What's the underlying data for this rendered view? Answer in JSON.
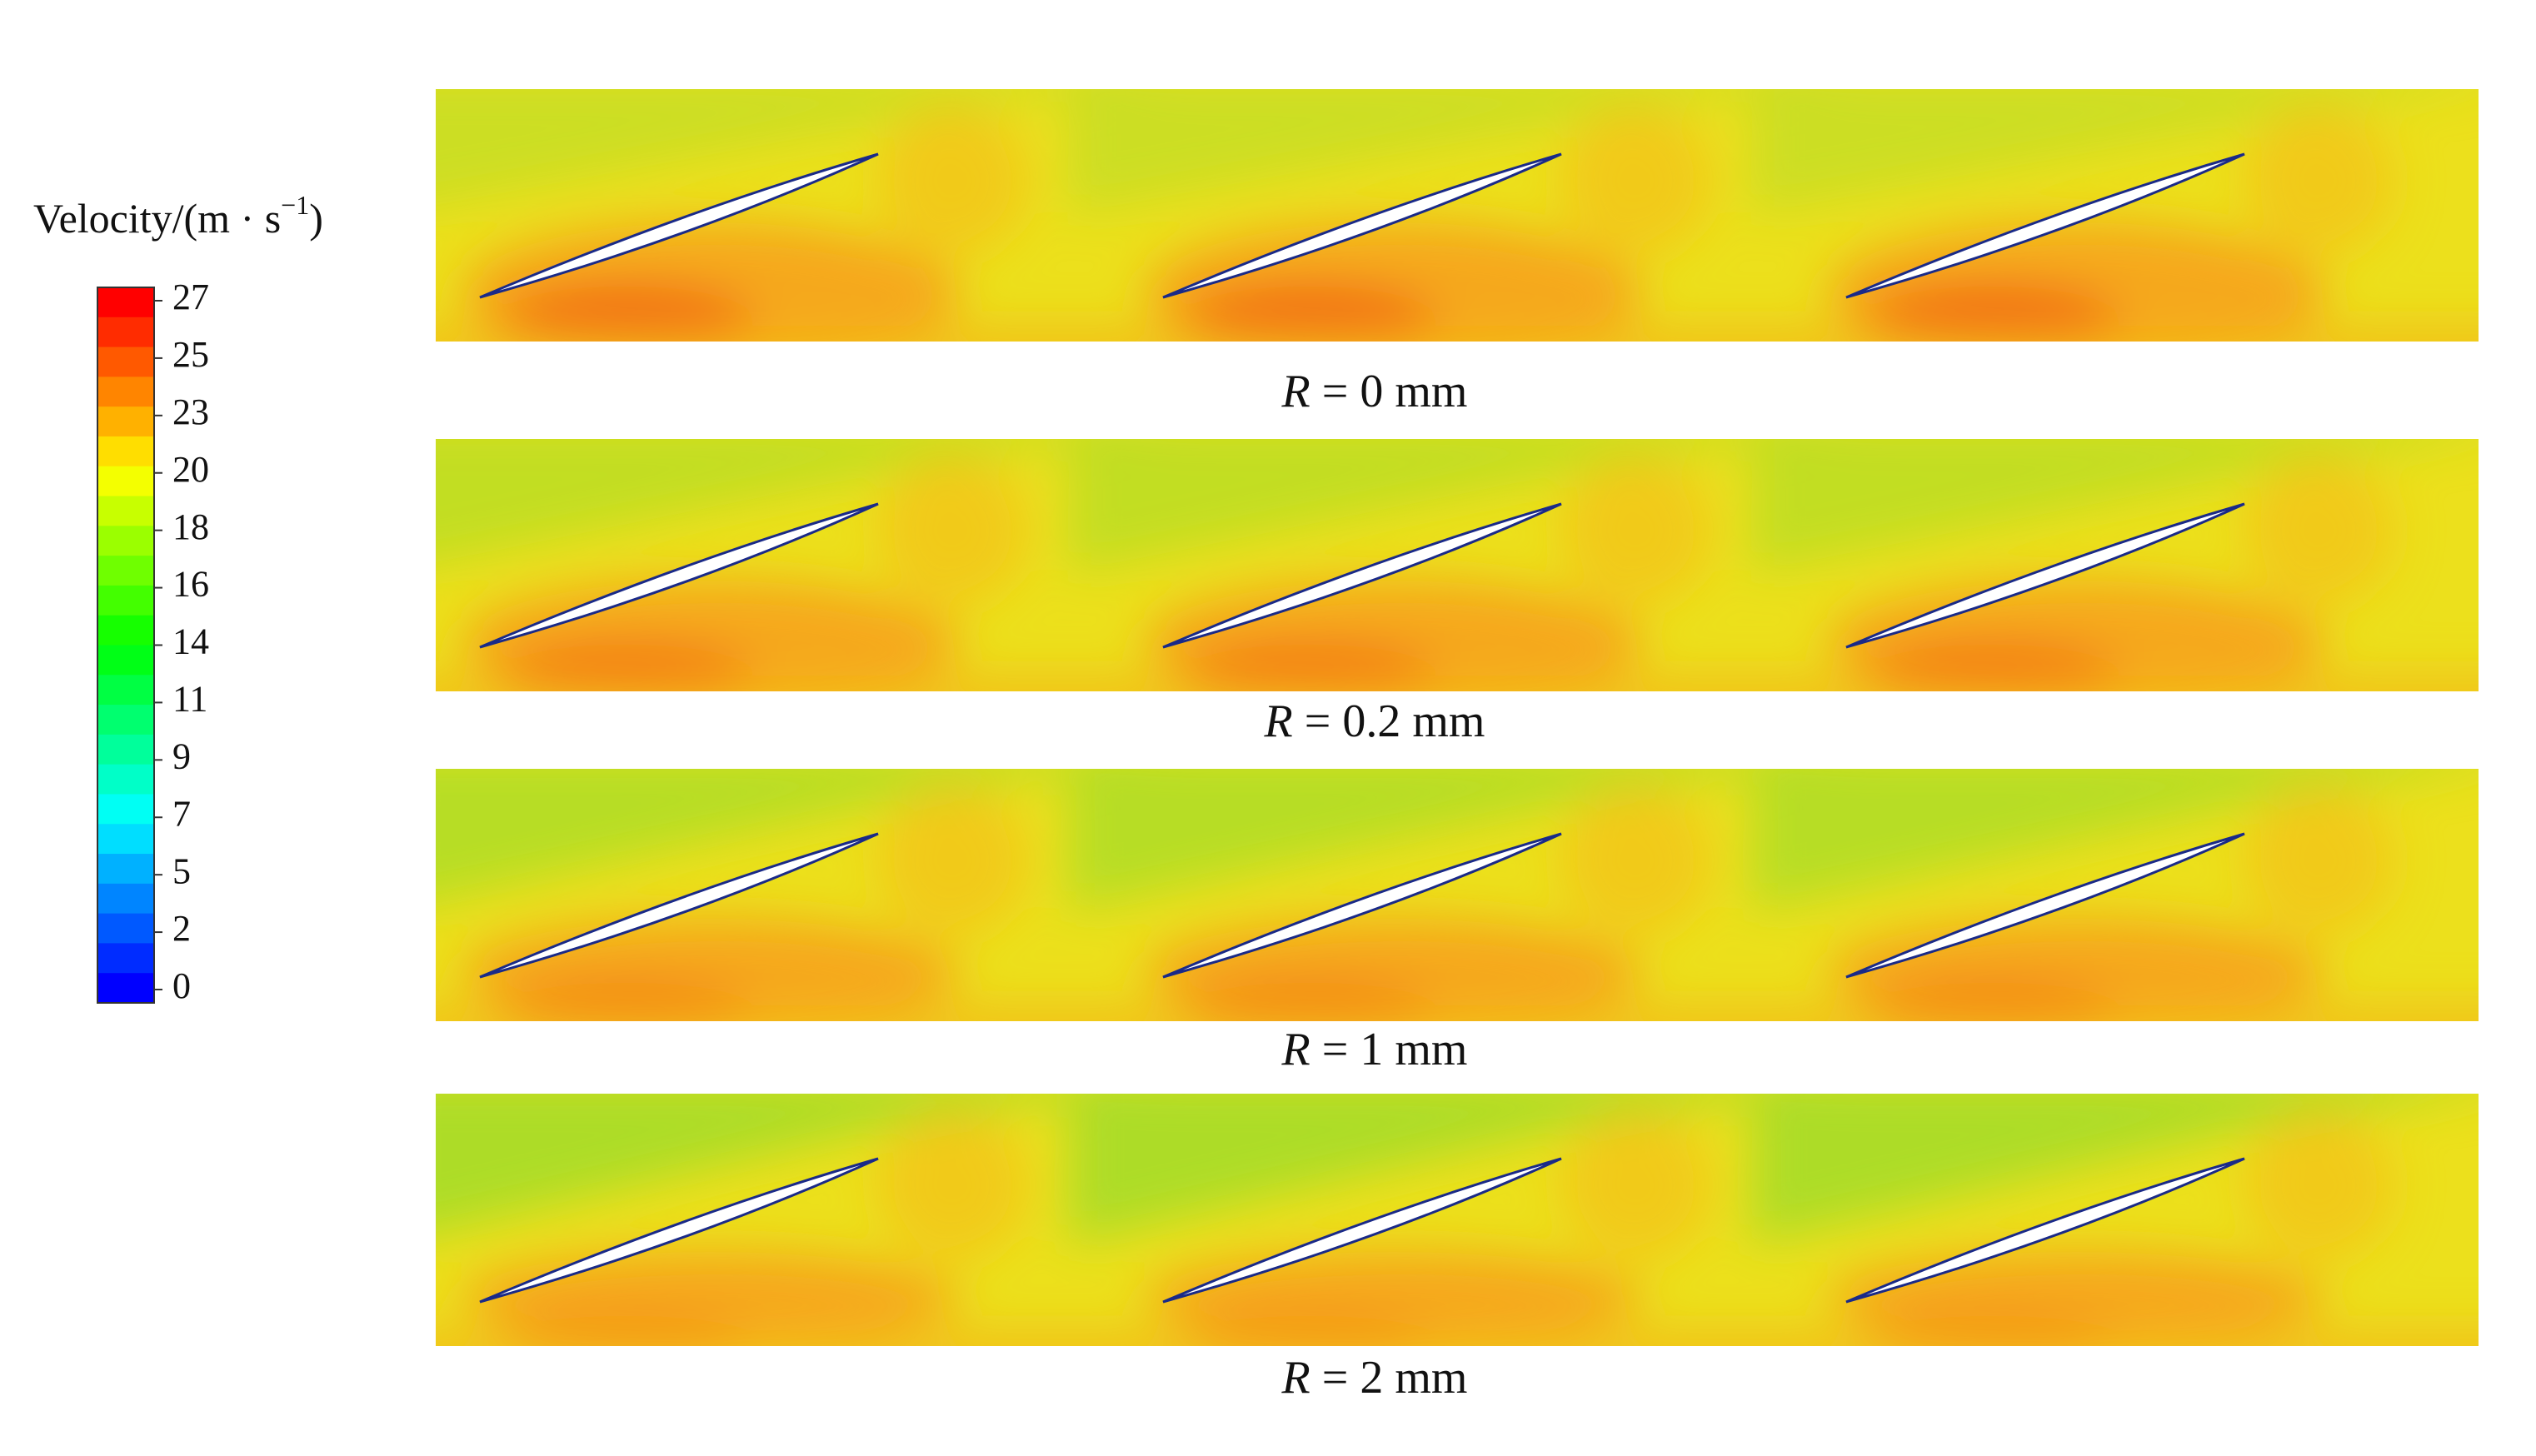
{
  "colorbar": {
    "label": "Velocity/(m · s",
    "label_sup": "−1",
    "label_end": ")",
    "ticks": [
      27,
      25,
      23,
      20,
      18,
      16,
      14,
      11,
      9,
      7,
      5,
      2,
      0
    ]
  },
  "panels": [
    {
      "caption": "R = 0 mm"
    },
    {
      "caption": "R = 0.2 mm"
    },
    {
      "caption": "R = 1 mm"
    },
    {
      "caption": "R = 2 mm"
    }
  ]
}
